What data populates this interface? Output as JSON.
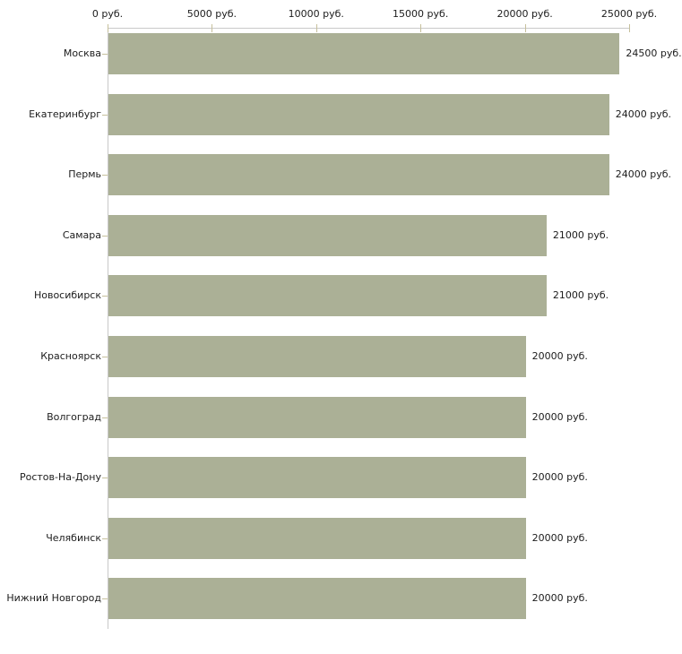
{
  "chart_data": {
    "type": "bar",
    "orientation": "horizontal",
    "title": "",
    "xlabel": "",
    "ylabel": "",
    "grid": false,
    "legend": false,
    "categories": [
      "Москва",
      "Екатеринбург",
      "Пермь",
      "Самара",
      "Новосибирск",
      "Красноярск",
      "Волгоград",
      "Ростов-На-Дону",
      "Челябинск",
      "Нижний Новгород"
    ],
    "values": [
      24500,
      24000,
      24000,
      21000,
      21000,
      20000,
      20000,
      20000,
      20000,
      20000
    ],
    "value_labels": [
      "24500 руб.",
      "24000 руб.",
      "24000 руб.",
      "21000 руб.",
      "21000 руб.",
      "20000 руб.",
      "20000 руб.",
      "20000 руб.",
      "20000 руб.",
      "20000 руб."
    ],
    "x_axis": {
      "position": "top",
      "range": [
        0,
        25000
      ],
      "tick_values": [
        0,
        5000,
        10000,
        15000,
        20000,
        25000
      ],
      "tick_labels": [
        "0 руб.",
        "5000 руб.",
        "10000 руб.",
        "15000 руб.",
        "20000 руб.",
        "25000 руб."
      ]
    },
    "colors": {
      "bar": "#abb096",
      "axis_line": "#c9c9c9",
      "tick_mark": "#c6c09c",
      "text": "#1c1c1c",
      "background": "#ffffff"
    }
  }
}
